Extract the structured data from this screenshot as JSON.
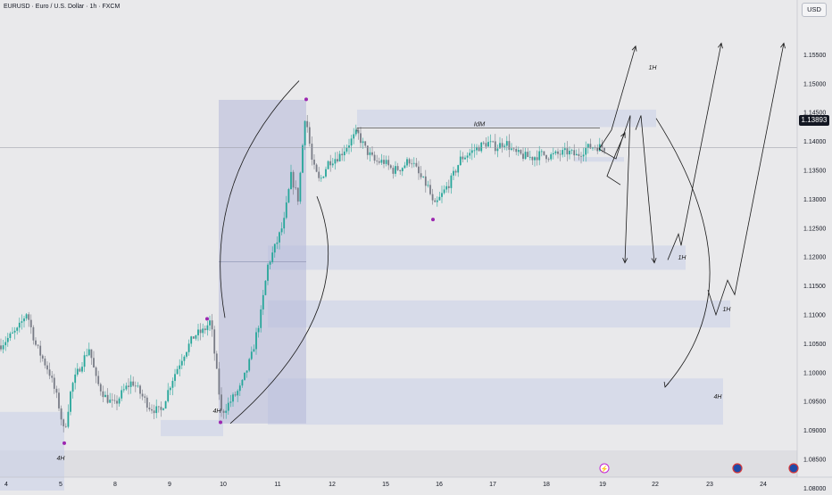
{
  "header": {
    "title": "EURUSD · Euro / U.S. Dollar · 1h · FXCM",
    "currency": "USD",
    "last_price": "1.13893"
  },
  "colors": {
    "background": "#e9e9eb",
    "bull": "#26a69a",
    "bear": "#787b86",
    "zone": "#c8cfe8",
    "range_box": "#b4b8d9",
    "pivot": "#9c27b0"
  },
  "annotations": {
    "idm": "IdM",
    "tf_1h": "1H",
    "tf_4h": "4H"
  },
  "chart_data": {
    "type": "candlestick",
    "symbol": "EURUSD",
    "interval": "1h",
    "ylim": [
      1.0765,
      1.159
    ],
    "y_ticks": [
      "1.15500",
      "1.15000",
      "1.14500",
      "1.14000",
      "1.13500",
      "1.13000",
      "1.12500",
      "1.12000",
      "1.11500",
      "1.11000",
      "1.10500",
      "1.10000",
      "1.09500",
      "1.09000",
      "1.08500",
      "1.08000"
    ],
    "x_ticks": [
      "4",
      "5",
      "8",
      "9",
      "10",
      "11",
      "12",
      "15",
      "16",
      "17",
      "18",
      "19",
      "22",
      "23",
      "24"
    ],
    "price_path": [
      [
        0,
        1.1047
      ],
      [
        10,
        1.1061
      ],
      [
        20,
        1.1074
      ],
      [
        30,
        1.1105
      ],
      [
        40,
        1.1048
      ],
      [
        55,
        1.1002
      ],
      [
        65,
        1.095
      ],
      [
        72,
        1.0895
      ],
      [
        80,
        1.0975
      ],
      [
        90,
        1.1012
      ],
      [
        100,
        1.1043
      ],
      [
        108,
        1.0985
      ],
      [
        118,
        1.0958
      ],
      [
        128,
        1.0943
      ],
      [
        138,
        1.0968
      ],
      [
        148,
        1.0985
      ],
      [
        158,
        1.0962
      ],
      [
        168,
        1.094
      ],
      [
        180,
        1.0932
      ],
      [
        192,
        1.0985
      ],
      [
        205,
        1.103
      ],
      [
        218,
        1.1065
      ],
      [
        228,
        1.1072
      ],
      [
        236,
        1.109
      ],
      [
        242,
        1.101
      ],
      [
        248,
        1.093
      ],
      [
        258,
        1.095
      ],
      [
        270,
        1.0975
      ],
      [
        282,
        1.103
      ],
      [
        292,
        1.11
      ],
      [
        300,
        1.1185
      ],
      [
        310,
        1.1225
      ],
      [
        318,
        1.126
      ],
      [
        326,
        1.134
      ],
      [
        334,
        1.13
      ],
      [
        342,
        1.145
      ],
      [
        350,
        1.136
      ],
      [
        358,
        1.133
      ],
      [
        368,
        1.1365
      ],
      [
        380,
        1.1375
      ],
      [
        390,
        1.1395
      ],
      [
        400,
        1.1415
      ],
      [
        410,
        1.1385
      ],
      [
        420,
        1.1365
      ],
      [
        430,
        1.1365
      ],
      [
        440,
        1.135
      ],
      [
        450,
        1.1355
      ],
      [
        460,
        1.137
      ],
      [
        470,
        1.134
      ],
      [
        480,
        1.132
      ],
      [
        486,
        1.1285
      ],
      [
        496,
        1.131
      ],
      [
        506,
        1.1335
      ],
      [
        516,
        1.137
      ],
      [
        526,
        1.138
      ],
      [
        536,
        1.139
      ],
      [
        546,
        1.1398
      ],
      [
        556,
        1.139
      ],
      [
        566,
        1.14
      ],
      [
        576,
        1.138
      ],
      [
        586,
        1.1375
      ],
      [
        596,
        1.1372
      ],
      [
        606,
        1.1378
      ],
      [
        616,
        1.1375
      ],
      [
        626,
        1.1378
      ],
      [
        636,
        1.1382
      ],
      [
        646,
        1.1375
      ],
      [
        656,
        1.1388
      ],
      [
        666,
        1.1392
      ],
      [
        678,
        1.1389
      ]
    ],
    "zones": [
      {
        "label": "1H",
        "x1": 400,
        "x2": 735,
        "y1": 1.1425,
        "y2": 1.1455
      },
      {
        "label": "",
        "x1": 644,
        "x2": 699,
        "y1": 1.1365,
        "y2": 1.1373
      },
      {
        "label": "1H",
        "x1": 300,
        "x2": 768,
        "y1": 1.1178,
        "y2": 1.122
      },
      {
        "label": "1H",
        "x1": 300,
        "x2": 818,
        "y1": 1.1078,
        "y2": 1.1125
      },
      {
        "label": "4H",
        "x1": 300,
        "x2": 810,
        "y1": 1.091,
        "y2": 1.099
      },
      {
        "label": "4H",
        "x1": 0,
        "x2": 72,
        "y1": 1.077,
        "y2": 1.0932
      },
      {
        "label": "4H",
        "x1": 180,
        "x2": 250,
        "y1": 1.089,
        "y2": 1.0918
      }
    ],
    "range_box": {
      "x1": 245,
      "x2": 343,
      "y1": 1.0912,
      "y2": 1.1472
    },
    "idm_level": 1.14235,
    "pivots": [
      [
        72,
        1.0878
      ],
      [
        232,
        1.1093
      ],
      [
        247,
        1.0914
      ],
      [
        343,
        1.1473
      ],
      [
        485,
        1.1265
      ]
    ],
    "projections": [
      [
        [
          671,
          1.1387
        ],
        [
          685,
          1.142
        ],
        [
          712,
          1.1565
        ]
      ],
      [
        [
          671,
          1.1387
        ],
        [
          690,
          1.137
        ],
        [
          696,
          1.14
        ],
        [
          706,
          1.1445
        ],
        [
          700,
          1.119
        ]
      ],
      [
        [
          695,
          1.1325
        ],
        [
          680,
          1.134
        ],
        [
          690,
          1.138
        ],
        [
          700,
          1.1415
        ]
      ],
      [
        [
          712,
          1.142
        ],
        [
          718,
          1.1445
        ],
        [
          733,
          1.119
        ]
      ],
      [
        [
          748,
          1.1195
        ],
        [
          760,
          1.124
        ],
        [
          763,
          1.122
        ],
        [
          808,
          1.157
        ]
      ],
      [
        [
          793,
          1.1143
        ],
        [
          802,
          1.11
        ],
        [
          815,
          1.116
        ],
        [
          823,
          1.1135
        ],
        [
          878,
          1.157
        ]
      ]
    ]
  }
}
